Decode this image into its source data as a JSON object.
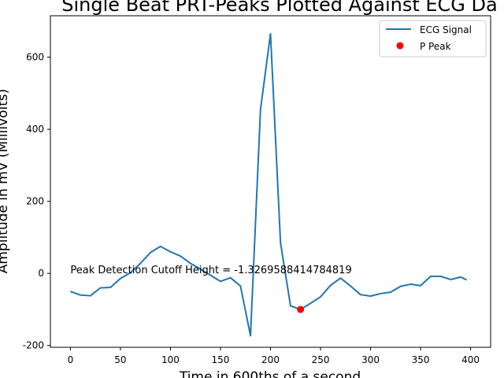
{
  "chart_data": {
    "type": "line",
    "title": "Single Beat PRT-Peaks Plotted Against ECG Da",
    "xlabel": "Time in 600ths of a second",
    "ylabel": "Amplitude in mV (Millivolts)",
    "xlim": [
      -20,
      420
    ],
    "ylim": [
      -205,
      715
    ],
    "xticks": [
      0,
      50,
      100,
      150,
      200,
      250,
      300,
      350,
      400
    ],
    "yticks": [
      -200,
      0,
      200,
      400,
      600
    ],
    "legend_position": "top-right",
    "annotation": {
      "text": "Peak Detection Cutoff Height = -1.3269588414784819",
      "x": 0,
      "y": 0
    },
    "series": [
      {
        "name": "ECG Signal",
        "kind": "line",
        "color": "#1f77b4",
        "x": [
          0,
          10,
          20,
          30,
          40,
          50,
          60,
          70,
          80,
          90,
          100,
          110,
          120,
          130,
          140,
          150,
          160,
          170,
          180,
          190,
          200,
          210,
          220,
          230,
          240,
          250,
          260,
          270,
          280,
          290,
          300,
          310,
          320,
          330,
          340,
          350,
          360,
          370,
          380,
          390,
          396
        ],
        "y": [
          -50,
          -60,
          -62,
          -40,
          -39,
          -14,
          2,
          28,
          58,
          75,
          60,
          48,
          28,
          12,
          -5,
          -22,
          -12,
          -35,
          -173,
          455,
          665,
          85,
          -90,
          -100,
          -83,
          -65,
          -33,
          -13,
          -35,
          -59,
          -63,
          -56,
          -52,
          -36,
          -30,
          -34,
          -8,
          -8,
          -17,
          -10,
          -18
        ]
      },
      {
        "name": "P Peak",
        "kind": "points",
        "color": "#ff0000",
        "x": [
          230
        ],
        "y": [
          -100
        ]
      }
    ]
  }
}
